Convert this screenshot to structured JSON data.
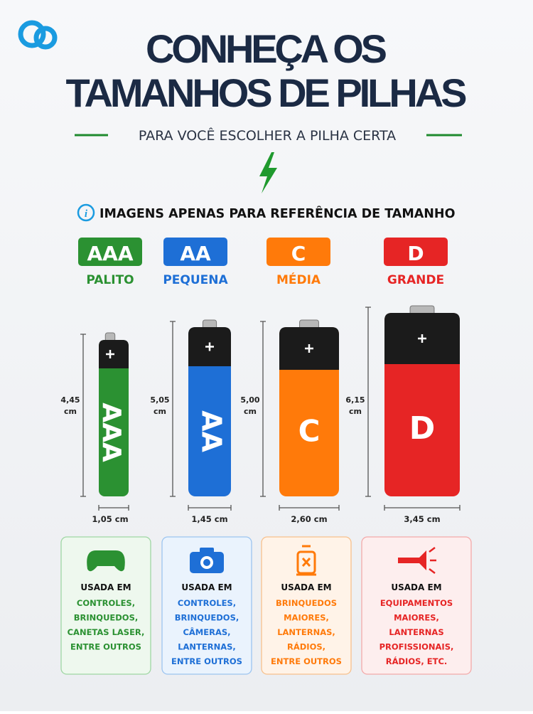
{
  "header": {
    "title_line1": "CONHEÇA OS",
    "title_line2": "TAMANHOS DE PILHAS",
    "subtitle": "PARA VOCÊ ESCOLHER A PILHA CERTA"
  },
  "notice": "IMAGENS APENAS PARA REFERÊNCIA DE TAMANHO",
  "batteries": [
    {
      "badge": "AAA",
      "name": "PALITO",
      "body_label": "AAA",
      "height_value": "4,45",
      "height_unit": "cm",
      "width": "1,05 cm",
      "usage_title": "USADA EM",
      "usage": [
        "CONTROLES,",
        "BRINQUEDOS,",
        "CANETAS LASER,",
        "ENTRE OUTROS"
      ]
    },
    {
      "badge": "AA",
      "name": "PEQUENA",
      "body_label": "AA",
      "height_value": "5,05",
      "height_unit": "cm",
      "width": "1,45 cm",
      "usage_title": "USADA EM",
      "usage": [
        "CONTROLES,",
        "BRINQUEDOS,",
        "CÂMERAS,",
        "LANTERNAS,",
        "ENTRE OUTROS"
      ]
    },
    {
      "badge": "C",
      "name": "MÉDIA",
      "body_label": "C",
      "height_value": "5,00",
      "height_unit": "cm",
      "width": "2,60 cm",
      "usage_title": "USADA EM",
      "usage": [
        "BRINQUEDOS",
        "MAIORES,",
        "LANTERNAS,",
        "RÁDIOS,",
        "ENTRE OUTROS"
      ]
    },
    {
      "badge": "D",
      "name": "GRANDE",
      "body_label": "D",
      "height_value": "6,15",
      "height_unit": "cm",
      "width": "3,45 cm",
      "usage_title": "USADA EM",
      "usage": [
        "EQUIPAMENTOS",
        "MAIORES,",
        "LANTERNAS",
        "PROFISSIONAIS,",
        "RÁDIOS, ETC."
      ]
    }
  ]
}
